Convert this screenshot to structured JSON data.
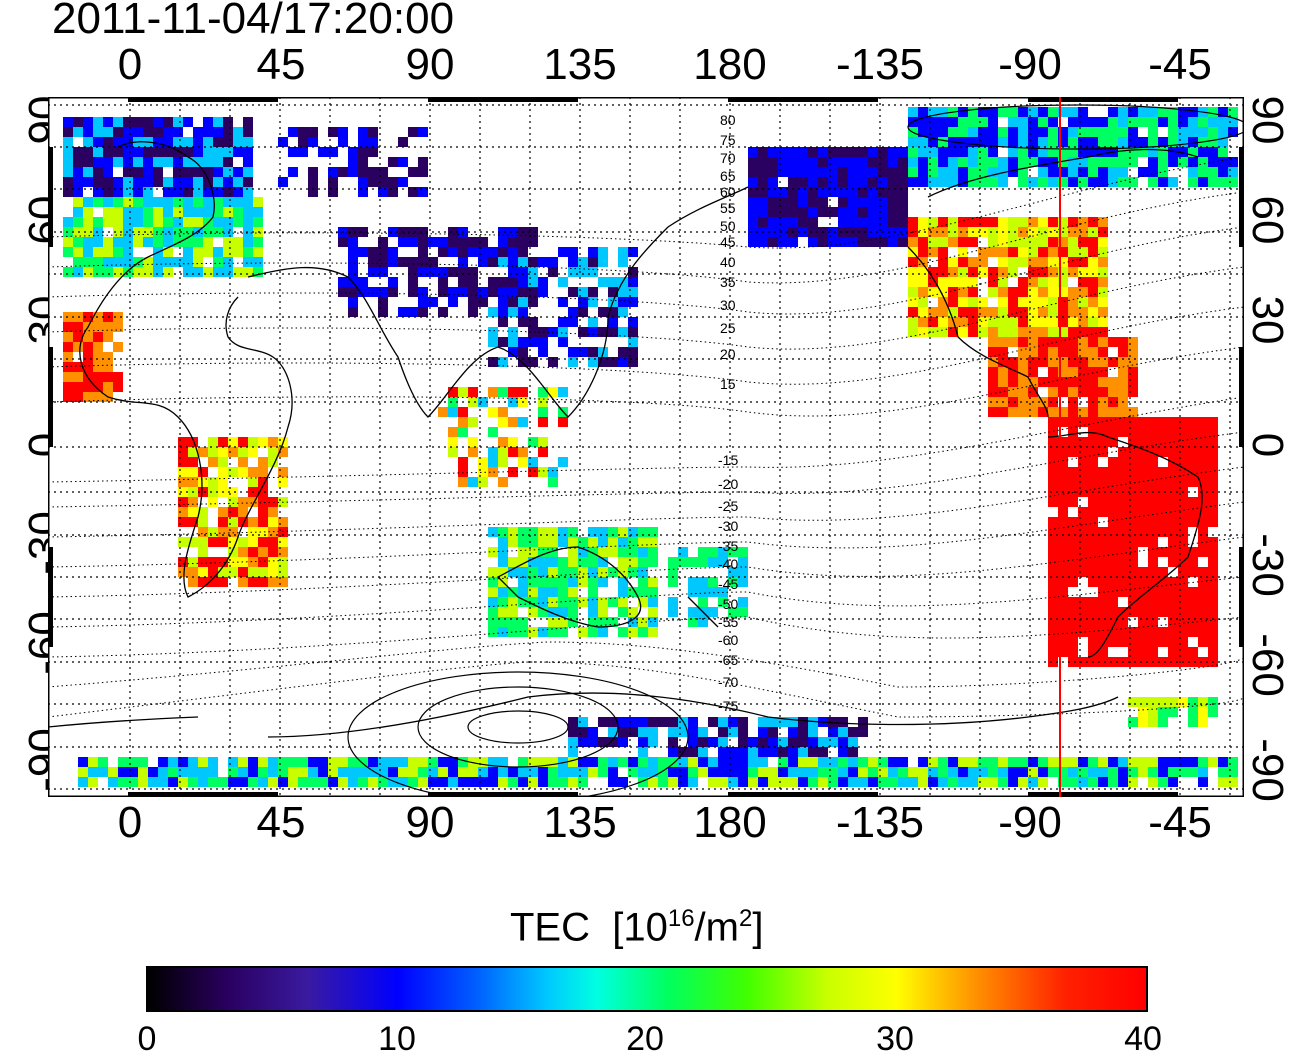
{
  "title": "2011-11-04/17:20:00",
  "map": {
    "x_ticks": [
      "0",
      "45",
      "90",
      "135",
      "180",
      "-135",
      "-90",
      "-45"
    ],
    "y_ticks_left": [
      "90",
      "60",
      "30",
      "0",
      "-30",
      "-60",
      "-90"
    ],
    "y_ticks_right": [
      "90",
      "60",
      "30",
      "0",
      "-30",
      "-60",
      "-90"
    ],
    "contour_labels_north": [
      "80",
      "75",
      "70",
      "65",
      "60",
      "55",
      "50",
      "45",
      "40",
      "35",
      "30",
      "25",
      "20",
      "15"
    ],
    "contour_labels_south": [
      "-15",
      "-20",
      "-25",
      "-30",
      "-35",
      "-40",
      "-45",
      "-50",
      "-55",
      "-60",
      "-65",
      "-70",
      "-75"
    ],
    "terminator_color": "#ff0000"
  },
  "colorbar": {
    "label": "TEC",
    "unit_prefix": "[10",
    "unit_sup": "16",
    "unit_mid": "/m",
    "unit_sup2": "2",
    "unit_suffix": "]",
    "ticks": [
      "0",
      "10",
      "20",
      "30",
      "40"
    ],
    "min": 0,
    "max": 40,
    "colors": [
      "#000000",
      "#2a0060",
      "#0000ff",
      "#00c8ff",
      "#00ff60",
      "#c8ff00",
      "#ffff00",
      "#ff9000",
      "#ff0000"
    ]
  }
}
